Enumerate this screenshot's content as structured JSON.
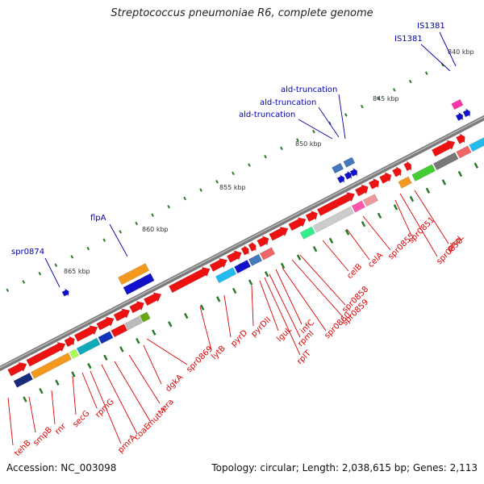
{
  "title": "Streptococcus pneumoniae R6, complete genome",
  "accession": "Accession: NC_003098",
  "topology": "Topology: circular; Length: 2,038,615 bp; Genes: 2,113",
  "colors": {
    "gene_label": "#dd0000",
    "feature_label": "#0000aa",
    "ticks": "#2a7a2a",
    "backbone": "#808080"
  },
  "ticks": [
    "840 kbp",
    "845 kbp",
    "850 kbp",
    "855 kbp",
    "860 kbp",
    "865 kbp"
  ],
  "top_features": [
    "IS1381",
    "IS1381",
    "ald-truncation",
    "ald-truncation",
    "ald-truncation",
    "flpA",
    "spr0874"
  ],
  "bottom_genes": [
    "tehB",
    "smpB",
    "rnr",
    "secG",
    "rpmG",
    "pmrA",
    "coaE",
    "mutM",
    "era",
    "dgkA",
    "spr0869",
    "lytB",
    "pyrD",
    "pyrDII",
    "lguL",
    "rplT",
    "rpmI",
    "infC",
    "spr0860",
    "spr0859",
    "spr0858",
    "celB",
    "celA",
    "spr0855",
    "spr0851",
    "spr0850",
    "phoL"
  ]
}
